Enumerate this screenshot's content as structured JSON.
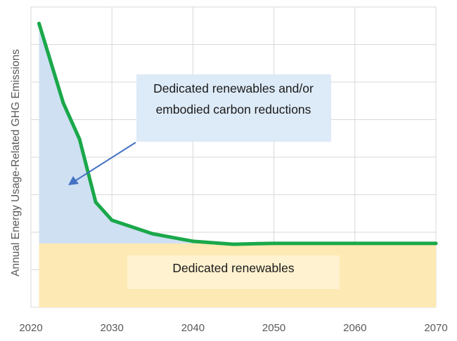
{
  "chart_data": {
    "type": "area",
    "title": "",
    "xlabel": "",
    "ylabel": "Annual Energy Usage-Related GHG Emissions",
    "xlim": [
      2020,
      2070
    ],
    "ylim": [
      0,
      100
    ],
    "x_ticks": [
      "2020",
      "2030",
      "2040",
      "2050",
      "2060",
      "2070"
    ],
    "grid": {
      "horizontal": true,
      "vertical": true
    },
    "colors": {
      "line": "#1aa84a",
      "upper_area": "#cfe0f3",
      "lower_area": "#fde9b3",
      "annotation_box_upper": "#ddeaf7",
      "annotation_box_lower": "#fff2d0",
      "arrow": "#4472c4",
      "grid": "#d9d9d9"
    },
    "series": [
      {
        "x": [
          2021,
          2024,
          2026,
          2028,
          2030,
          2035,
          2040,
          2045,
          2048,
          2050,
          2060,
          2070
        ],
        "values": [
          94.5,
          68,
          56,
          35,
          29,
          24.5,
          22,
          21,
          21.2,
          21.3,
          21.3,
          21.3
        ]
      }
    ],
    "baseline_level": 21.3,
    "x_start": 2021,
    "annotations": [
      {
        "lines": [
          "Dedicated renewables and/or",
          "embodied carbon reductions"
        ]
      },
      {
        "lines": [
          "Dedicated renewables"
        ]
      }
    ]
  }
}
